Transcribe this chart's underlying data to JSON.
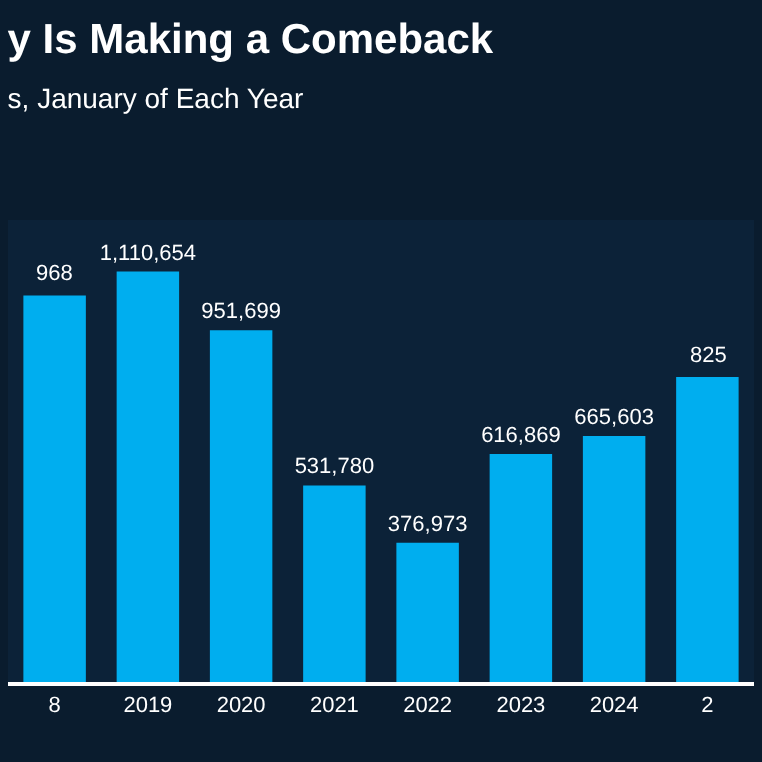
{
  "chart_data": {
    "type": "bar",
    "title": "y Is Making a Comeback",
    "subtitle": "s, January of Each Year",
    "categories": [
      "8",
      "2019",
      "2020",
      "2021",
      "2022",
      "2023",
      "2024",
      "2"
    ],
    "values": [
      1045968,
      1110654,
      951699,
      531780,
      376973,
      616869,
      665603,
      825000
    ],
    "value_labels": [
      null,
      "1,110,654",
      "951,699",
      "531,780",
      "376,973",
      "616,869",
      "665,603",
      null
    ],
    "annotations": [
      {
        "text": "968",
        "x": "8",
        "y": 1045968
      },
      {
        "text": "825",
        "x": "2",
        "y": 825000
      }
    ],
    "color": "#00aeef",
    "ylim": [
      0,
      1250000
    ]
  }
}
